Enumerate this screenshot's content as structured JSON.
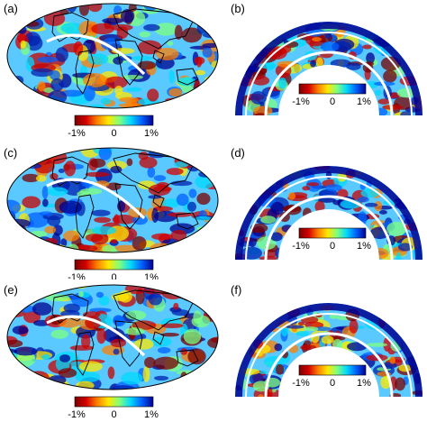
{
  "panels": [
    {
      "label": "(a)",
      "kind": "map"
    },
    {
      "label": "(b)",
      "kind": "section"
    },
    {
      "label": "(c)",
      "kind": "map"
    },
    {
      "label": "(d)",
      "kind": "section"
    },
    {
      "label": "(e)",
      "kind": "map"
    },
    {
      "label": "(f)",
      "kind": "section"
    }
  ],
  "colorbar": {
    "min_label": "-1%",
    "mid_label": "0",
    "max_label": "1%",
    "colors": [
      "#7a0000",
      "#d40000",
      "#ff7f00",
      "#ffe800",
      "#7fff7f",
      "#00d8ff",
      "#0060ff",
      "#00008f"
    ]
  },
  "colors": {
    "map_fill_background": "#59c9ff",
    "anomaly_slow": "#c80000",
    "anomaly_fast": "#0020b0",
    "profile_line": "#ffffff",
    "coastline": "#000000"
  }
}
